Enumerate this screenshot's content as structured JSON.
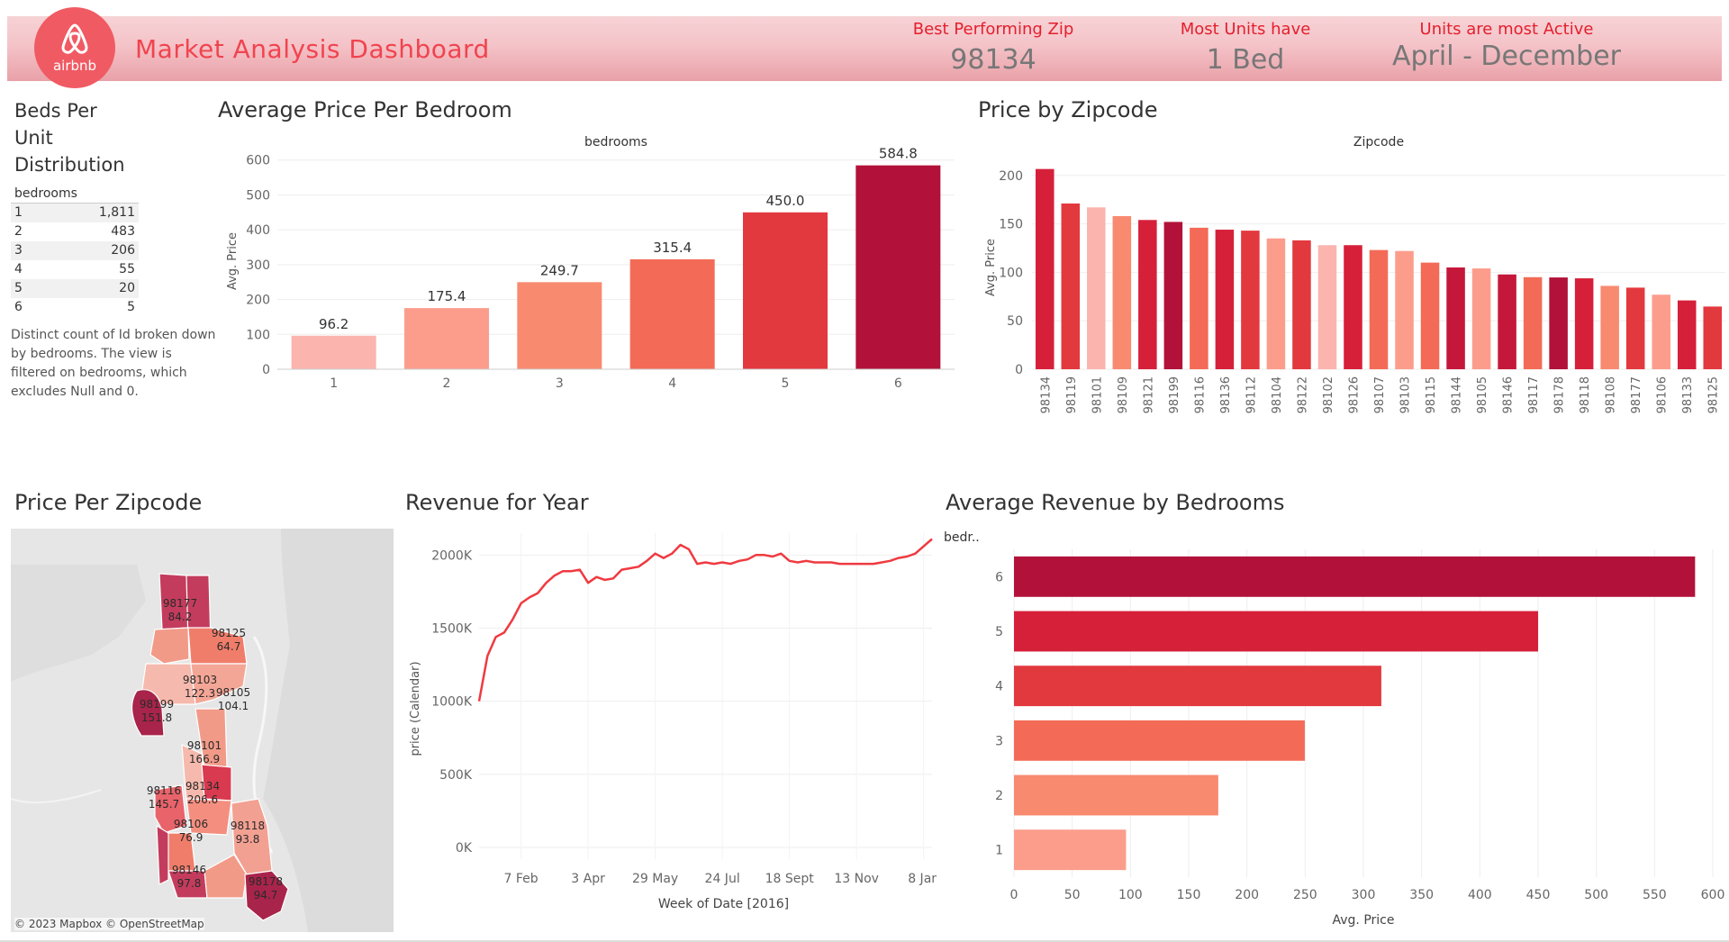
{
  "header": {
    "logo_text": "airbnb",
    "title": "Market Analysis Dashboard",
    "kpis": [
      {
        "label": "Best Performing Zip",
        "value": "98134"
      },
      {
        "label": "Most Units have",
        "value": "1 Bed"
      },
      {
        "label": "Units are most Active",
        "value": "April - December"
      }
    ],
    "colors": {
      "band": "#f4c3c8",
      "title": "#f0444f",
      "kpi_label": "#e41f2d"
    }
  },
  "beds_table": {
    "title_lines": [
      "Beds Per",
      "Unit",
      "Distribution"
    ],
    "column_header": "bedrooms",
    "rows": [
      {
        "bedrooms": "1",
        "count": "1,811"
      },
      {
        "bedrooms": "2",
        "count": "483"
      },
      {
        "bedrooms": "3",
        "count": "206"
      },
      {
        "bedrooms": "4",
        "count": "55"
      },
      {
        "bedrooms": "5",
        "count": "20"
      },
      {
        "bedrooms": "6",
        "count": "5"
      }
    ],
    "note": "Distinct count of Id broken down by bedrooms. The view is filtered on bedrooms, which excludes Null and 0."
  },
  "map": {
    "title": "Price Per Zipcode",
    "credit": "© 2023 Mapbox © OpenStreetMap",
    "labels": [
      {
        "zip": "98177",
        "value": "84.2"
      },
      {
        "zip": "98125",
        "value": "64.7"
      },
      {
        "zip": "98103",
        "value": "122.3"
      },
      {
        "zip": "98105",
        "value": "104.1"
      },
      {
        "zip": "98199",
        "value": "151.8"
      },
      {
        "zip": "98101",
        "value": "166.9"
      },
      {
        "zip": "98134",
        "value": "206.6"
      },
      {
        "zip": "98116",
        "value": "145.7"
      },
      {
        "zip": "98106",
        "value": "76.9"
      },
      {
        "zip": "98118",
        "value": "93.8"
      },
      {
        "zip": "98146",
        "value": "97.8"
      },
      {
        "zip": "98178",
        "value": "94.7"
      }
    ]
  },
  "chart_data": [
    {
      "id": "avg-price-per-bedroom",
      "type": "bar",
      "title": "Average Price Per Bedroom",
      "top_label": "bedrooms",
      "ylabel": "Avg. Price",
      "categories": [
        "1",
        "2",
        "3",
        "4",
        "5",
        "6"
      ],
      "values": [
        96.2,
        175.4,
        249.7,
        315.4,
        450.0,
        584.8
      ],
      "value_labels": [
        "96.2",
        "175.4",
        "249.7",
        "315.4",
        "450.0",
        "584.8"
      ],
      "ylim": [
        0,
        620
      ],
      "yticks": [
        0,
        100,
        200,
        300,
        400,
        500,
        600
      ],
      "colors": [
        "#fbb4ae",
        "#fc9d8c",
        "#f88a70",
        "#f36b57",
        "#e2393f",
        "#b2123a"
      ],
      "grid": true
    },
    {
      "id": "price-by-zipcode",
      "type": "bar",
      "title": "Price by Zipcode",
      "top_label": "Zipcode",
      "ylabel": "Avg. Price",
      "categories": [
        "98134",
        "98119",
        "98101",
        "98109",
        "98121",
        "98199",
        "98116",
        "98136",
        "98112",
        "98104",
        "98122",
        "98102",
        "98126",
        "98107",
        "98103",
        "98115",
        "98144",
        "98105",
        "98146",
        "98117",
        "98178",
        "98118",
        "98108",
        "98177",
        "98106",
        "98133",
        "98125"
      ],
      "values": [
        206.6,
        171,
        167,
        158,
        154,
        152,
        146,
        144,
        143,
        135,
        133,
        128,
        128,
        123,
        122,
        110,
        105,
        104,
        97.8,
        95,
        94.7,
        93.8,
        86,
        84.2,
        76.9,
        71,
        64.7
      ],
      "ylim": [
        0,
        210
      ],
      "yticks": [
        0,
        50,
        100,
        150,
        200
      ],
      "colors": [
        "#d6203a",
        "#e2393f",
        "#fbb4ae",
        "#f88a70",
        "#d6203a",
        "#b2123a",
        "#f36b57",
        "#d6203a",
        "#e2393f",
        "#fc9d8c",
        "#e2393f",
        "#fbb4ae",
        "#d6203a",
        "#f36b57",
        "#fc9d8c",
        "#f36b57",
        "#c5173a",
        "#fc9d8c",
        "#c5173a",
        "#f36b57",
        "#b2123a",
        "#d6203a",
        "#f88a70",
        "#e2393f",
        "#fc9d8c",
        "#d6203a",
        "#e2393f"
      ],
      "grid": true
    },
    {
      "id": "revenue-for-year",
      "type": "line",
      "title": "Revenue for Year",
      "xlabel": "Week of Date [2016]",
      "ylabel": "price (Calendar)",
      "x_tick_labels": [
        "7 Feb",
        "3 Apr",
        "29 May",
        "24 Jul",
        "18 Sept",
        "13 Nov",
        "8 Jan"
      ],
      "x_tick_weeks": [
        5,
        13,
        21,
        29,
        37,
        45,
        53
      ],
      "y_tick_labels": [
        "0K",
        "500K",
        "1000K",
        "1500K",
        "2000K"
      ],
      "y_tick_values": [
        0,
        500000,
        1000000,
        1500000,
        2000000
      ],
      "ylim": [
        -80000,
        2150000
      ],
      "xlim": [
        0,
        54
      ],
      "series": [
        {
          "values": [
            1000000,
            1310000,
            1440000,
            1470000,
            1560000,
            1670000,
            1710000,
            1740000,
            1810000,
            1860000,
            1890000,
            1890000,
            1900000,
            1810000,
            1850000,
            1830000,
            1840000,
            1900000,
            1910000,
            1920000,
            1960000,
            2010000,
            1980000,
            2010000,
            2070000,
            2040000,
            1940000,
            1950000,
            1940000,
            1950000,
            1940000,
            1960000,
            1970000,
            2000000,
            2000000,
            1990000,
            2010000,
            1960000,
            1950000,
            1960000,
            1950000,
            1950000,
            1950000,
            1940000,
            1940000,
            1940000,
            1940000,
            1940000,
            1950000,
            1960000,
            1980000,
            1990000,
            2010000,
            2060000,
            2110000
          ],
          "color": "#ef3a40"
        }
      ],
      "grid": true
    },
    {
      "id": "avg-revenue-by-bedrooms",
      "type": "bar",
      "orientation": "horizontal",
      "title": "Average Revenue by Bedrooms",
      "ylabel": "bedr..",
      "xlabel": "Avg. Price",
      "categories": [
        "6",
        "5",
        "4",
        "3",
        "2",
        "1"
      ],
      "values": [
        584.8,
        450.0,
        315.4,
        249.7,
        175.4,
        96.2
      ],
      "xlim": [
        0,
        600
      ],
      "xticks": [
        0,
        50,
        100,
        150,
        200,
        250,
        300,
        350,
        400,
        450,
        500,
        550,
        600
      ],
      "colors": [
        "#b2123a",
        "#d6203a",
        "#e2393f",
        "#f36b57",
        "#f88a70",
        "#fc9d8c"
      ],
      "grid": true
    }
  ]
}
